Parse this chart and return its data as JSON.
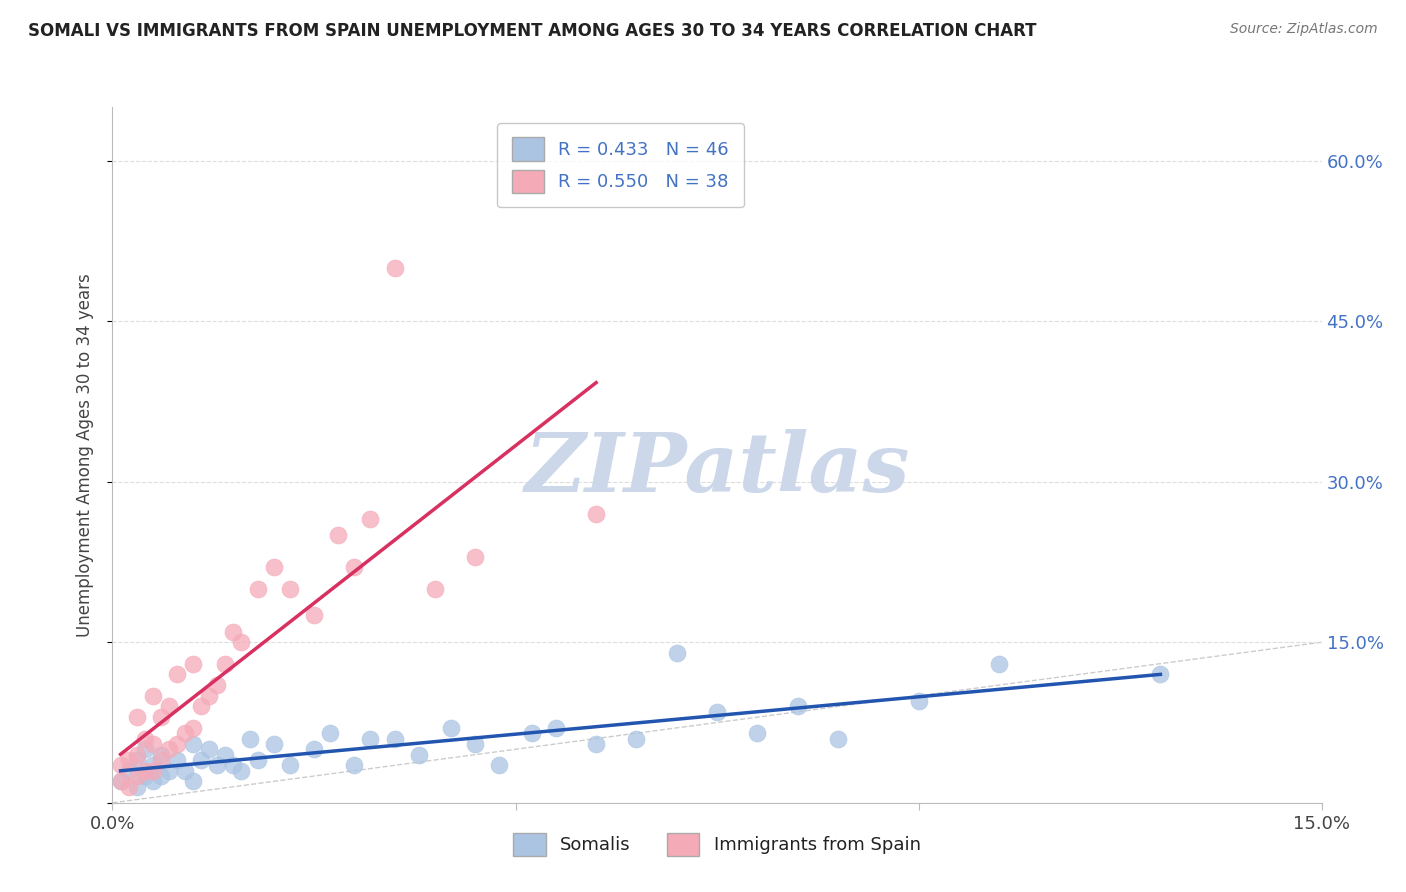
{
  "title": "SOMALI VS IMMIGRANTS FROM SPAIN UNEMPLOYMENT AMONG AGES 30 TO 34 YEARS CORRELATION CHART",
  "source": "Source: ZipAtlas.com",
  "ylabel": "Unemployment Among Ages 30 to 34 years",
  "xlim": [
    0.0,
    0.15
  ],
  "ylim": [
    0.0,
    0.65
  ],
  "somali_R": 0.433,
  "somali_N": 46,
  "spain_R": 0.55,
  "spain_N": 38,
  "somali_color": "#aac4e2",
  "spain_color": "#f5aab8",
  "somali_line_color": "#2255b0",
  "spain_line_color": "#d83060",
  "diagonal_color": "#cccccc",
  "watermark_color": "#ccd8ea",
  "somali_x": [
    0.001,
    0.002,
    0.003,
    0.003,
    0.004,
    0.004,
    0.005,
    0.005,
    0.006,
    0.006,
    0.007,
    0.008,
    0.009,
    0.01,
    0.01,
    0.011,
    0.012,
    0.013,
    0.014,
    0.015,
    0.016,
    0.017,
    0.018,
    0.02,
    0.022,
    0.025,
    0.027,
    0.03,
    0.032,
    0.035,
    0.038,
    0.042,
    0.045,
    0.048,
    0.052,
    0.055,
    0.06,
    0.065,
    0.07,
    0.075,
    0.08,
    0.085,
    0.09,
    0.1,
    0.11,
    0.13
  ],
  "somali_y": [
    0.02,
    0.03,
    0.015,
    0.04,
    0.025,
    0.05,
    0.02,
    0.035,
    0.025,
    0.045,
    0.03,
    0.04,
    0.03,
    0.055,
    0.02,
    0.04,
    0.05,
    0.035,
    0.045,
    0.035,
    0.03,
    0.06,
    0.04,
    0.055,
    0.035,
    0.05,
    0.065,
    0.035,
    0.06,
    0.06,
    0.045,
    0.07,
    0.055,
    0.035,
    0.065,
    0.07,
    0.055,
    0.06,
    0.14,
    0.085,
    0.065,
    0.09,
    0.06,
    0.095,
    0.13,
    0.12
  ],
  "spain_x": [
    0.001,
    0.001,
    0.002,
    0.002,
    0.003,
    0.003,
    0.003,
    0.004,
    0.004,
    0.005,
    0.005,
    0.005,
    0.006,
    0.006,
    0.007,
    0.007,
    0.008,
    0.008,
    0.009,
    0.01,
    0.01,
    0.011,
    0.012,
    0.013,
    0.014,
    0.015,
    0.016,
    0.018,
    0.02,
    0.022,
    0.025,
    0.028,
    0.03,
    0.032,
    0.035,
    0.04,
    0.045,
    0.06
  ],
  "spain_y": [
    0.02,
    0.035,
    0.015,
    0.04,
    0.025,
    0.045,
    0.08,
    0.03,
    0.06,
    0.03,
    0.055,
    0.1,
    0.04,
    0.08,
    0.05,
    0.09,
    0.055,
    0.12,
    0.065,
    0.07,
    0.13,
    0.09,
    0.1,
    0.11,
    0.13,
    0.16,
    0.15,
    0.2,
    0.22,
    0.2,
    0.175,
    0.25,
    0.22,
    0.265,
    0.5,
    0.2,
    0.23,
    0.27
  ]
}
